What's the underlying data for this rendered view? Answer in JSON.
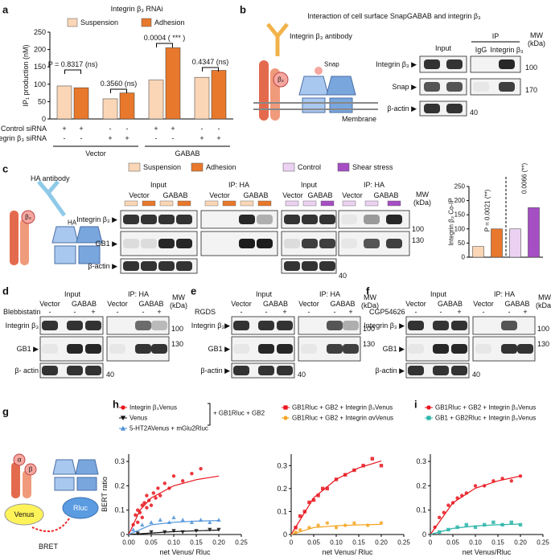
{
  "panel_letters": [
    "a",
    "b",
    "c",
    "d",
    "e",
    "f",
    "g",
    "h",
    "i"
  ],
  "chart_data": [
    {
      "type": "bar",
      "title": "Integrin β₃ RNAi",
      "ylabel": "IP₁ production (nM)",
      "categories": [
        null,
        null,
        null,
        null
      ],
      "series": [
        {
          "name": "Suspension",
          "color": "#fad6b6",
          "values": [
            95,
            58,
            112,
            120
          ]
        },
        {
          "name": "Adhesion",
          "color": "#e8782c",
          "values": [
            90,
            75,
            205,
            140
          ]
        }
      ],
      "ylim": [
        0,
        250
      ],
      "yticks": [
        0,
        50,
        100,
        150,
        200,
        250
      ],
      "annotations": [
        "P = 0.8317 (ns)",
        "0.3560 (ns)",
        "0.0004 ( *** )",
        "0.4347 (ns)"
      ],
      "condition_rows": [
        {
          "label": "Control siRNA",
          "signs": [
            "+",
            "+",
            "-",
            "-",
            "+",
            "+",
            "-",
            "-"
          ]
        },
        {
          "label": "Integrin β₃ siRNA",
          "signs": [
            "-",
            "-",
            "+",
            "+",
            "-",
            "-",
            "+",
            "+"
          ]
        }
      ],
      "groups": [
        "Vector",
        "GABAB"
      ]
    },
    {
      "type": "bar",
      "ylabel": "Integrin β₃ Co-IP",
      "categories": [
        null,
        null,
        null,
        null
      ],
      "values": [
        38,
        100,
        100,
        175
      ],
      "colors": [
        "#fad6b6",
        "#e8782c",
        "#ecd2f2",
        "#a64ec4"
      ],
      "ylim": [
        0,
        250
      ],
      "yticks": [
        0,
        50,
        100,
        150,
        200,
        250
      ],
      "annotations": [
        "P = 0.0021 (**)",
        "0.0066 (**)"
      ]
    },
    {
      "type": "scatter",
      "xlabel": "net Venus/ Rluc",
      "ylabel": "BERT ratio",
      "xlim": [
        0,
        0.25
      ],
      "ylim": [
        0,
        0.33
      ],
      "xticks": [
        {
          "value": 0,
          "label": "0.00"
        },
        0.05,
        {
          "value": 0.1,
          "label": "0.10"
        },
        0.15,
        {
          "value": 0.2,
          "label": "0.20"
        },
        0.25
      ],
      "yticks": [
        0,
        0.1,
        0.2,
        0.3
      ],
      "legend_note": "+ GB1Rluc + GB2",
      "series": [
        {
          "name": "Integrin β₃Venus",
          "color": "#e8141c",
          "marker": "circle",
          "x": [
            0.01,
            0.015,
            0.02,
            0.02,
            0.025,
            0.03,
            0.03,
            0.035,
            0.04,
            0.04,
            0.045,
            0.05,
            0.055,
            0.06,
            0.065,
            0.07,
            0.08,
            0.09,
            0.1,
            0.12,
            0.14,
            0.16
          ],
          "values": [
            0.04,
            0.08,
            0.05,
            0.1,
            0.09,
            0.12,
            0.07,
            0.13,
            0.11,
            0.16,
            0.14,
            0.12,
            0.17,
            0.15,
            0.19,
            0.16,
            0.21,
            0.19,
            0.24,
            0.22,
            0.25,
            0.27
          ],
          "fit": {
            "x": [
              0,
              0.025,
              0.05,
              0.1,
              0.15,
              0.2
            ],
            "values": [
              0,
              0.1,
              0.15,
              0.2,
              0.225,
              0.24
            ]
          }
        },
        {
          "name": "Venus",
          "color": "#111111",
          "marker": "triangle-down",
          "x": [
            0.02,
            0.05,
            0.08,
            0.1,
            0.12,
            0.15,
            0.18,
            0.2
          ],
          "values": [
            0.005,
            0.01,
            0.01,
            0.015,
            0.01,
            0.015,
            0.02,
            0.02
          ],
          "fit": {
            "x": [
              0,
              0.1,
              0.2
            ],
            "values": [
              0,
              0.012,
              0.018
            ]
          }
        },
        {
          "name": "5-HT2AVenus + mGlu2Rluc",
          "color": "#4a90d9",
          "marker": "triangle",
          "x": [
            0.01,
            0.03,
            0.05,
            0.07,
            0.09,
            0.1,
            0.12,
            0.14,
            0.16,
            0.18,
            0.2
          ],
          "values": [
            0.02,
            0.04,
            0.05,
            0.06,
            0.05,
            0.07,
            0.06,
            0.05,
            0.06,
            0.05,
            0.06
          ],
          "fit": {
            "x": [
              0,
              0.05,
              0.1,
              0.15,
              0.2
            ],
            "values": [
              0,
              0.04,
              0.05,
              0.055,
              0.057
            ]
          }
        }
      ]
    },
    {
      "type": "scatter",
      "xlabel": "net Venus/ Rluc",
      "xlim": [
        0,
        0.25
      ],
      "ylim": [
        0,
        0.35
      ],
      "xticks": [
        0,
        0.05,
        {
          "value": 0.1,
          "label": "0.10"
        },
        0.15,
        {
          "value": 0.2,
          "label": "0.20"
        },
        0.25
      ],
      "yticks": [
        0,
        0.1,
        0.2,
        0.3
      ],
      "series": [
        {
          "name": "GB1Rluc + GB2 + Integrin β₃Venus",
          "color": "#e8141c",
          "marker": "square",
          "x": [
            0.01,
            0.02,
            0.03,
            0.04,
            0.05,
            0.06,
            0.07,
            0.08,
            0.1,
            0.12,
            0.14,
            0.16,
            0.18,
            0.2
          ],
          "values": [
            0.03,
            0.08,
            0.1,
            0.14,
            0.15,
            0.17,
            0.2,
            0.2,
            0.24,
            0.26,
            0.28,
            0.3,
            0.33,
            0.3
          ],
          "fit": {
            "x": [
              0,
              0.05,
              0.1,
              0.15,
              0.2
            ],
            "values": [
              0,
              0.16,
              0.24,
              0.29,
              0.32
            ]
          }
        },
        {
          "name": "GB1Rluc + GB2 + Integrin αvVenus",
          "color": "#f5a623",
          "marker": "circle",
          "x": [
            0.01,
            0.02,
            0.04,
            0.06,
            0.08,
            0.1,
            0.12,
            0.14,
            0.17,
            0.2
          ],
          "values": [
            0.01,
            0.02,
            0.03,
            0.04,
            0.05,
            0.03,
            0.04,
            0.05,
            0.04,
            0.05
          ],
          "fit": {
            "x": [
              0,
              0.05,
              0.1,
              0.15,
              0.2
            ],
            "values": [
              0,
              0.03,
              0.038,
              0.042,
              0.044
            ]
          }
        }
      ]
    },
    {
      "type": "scatter",
      "xlabel": "net Venus/Rluc",
      "xlim": [
        0,
        0.25
      ],
      "ylim": [
        0,
        0.33
      ],
      "xticks": [
        0,
        0.05,
        {
          "value": 0.1,
          "label": "0.10"
        },
        0.15,
        {
          "value": 0.2,
          "label": "0.20"
        },
        0.25
      ],
      "yticks": [
        0,
        0.1,
        0.2,
        0.3
      ],
      "series": [
        {
          "name": "GB1Rluc + GB2 + Integrin β₃Venus",
          "color": "#e8141c",
          "marker": "circle",
          "x": [
            0.01,
            0.02,
            0.03,
            0.04,
            0.05,
            0.06,
            0.07,
            0.08,
            0.1,
            0.12,
            0.14,
            0.16,
            0.18,
            0.2
          ],
          "values": [
            0.03,
            0.07,
            0.09,
            0.12,
            0.13,
            0.15,
            0.16,
            0.17,
            0.2,
            0.2,
            0.22,
            0.23,
            0.22,
            0.24
          ],
          "fit": {
            "x": [
              0,
              0.05,
              0.1,
              0.15,
              0.2
            ],
            "values": [
              0,
              0.13,
              0.19,
              0.22,
              0.24
            ]
          }
        },
        {
          "name": "GB1 + GB2Rluc + Integrin β₃Venus",
          "color": "#2bb5a8",
          "marker": "square",
          "x": [
            0.02,
            0.04,
            0.06,
            0.08,
            0.1,
            0.12,
            0.14,
            0.16,
            0.18,
            0.2
          ],
          "values": [
            0.01,
            0.02,
            0.03,
            0.04,
            0.03,
            0.04,
            0.05,
            0.04,
            0.05,
            0.04
          ],
          "fit": {
            "x": [
              0,
              0.05,
              0.1,
              0.15,
              0.2
            ],
            "values": [
              0,
              0.025,
              0.035,
              0.04,
              0.043
            ]
          }
        }
      ]
    }
  ],
  "panel_b": {
    "title": "Interaction of cell surface SnapGABAB and integrin β₃",
    "antibody": "Integrin β₃  antibody",
    "tag": "Snap",
    "subunit": "β₃",
    "membrane": "Membrane",
    "input": "Input",
    "ip": "IP",
    "ip_lanes": [
      "IgG",
      "Integrin β₃"
    ],
    "mw": [
      "MW",
      "(kDa)"
    ],
    "rows": [
      "Integrin β₃ ▶",
      "Snap ▶",
      "β-actin ▶"
    ],
    "mw_values": [
      "100",
      "170",
      "40"
    ]
  },
  "panel_c": {
    "legend": [
      {
        "name": "Suspension",
        "color": "#fad6b6"
      },
      {
        "name": "Adhesion",
        "color": "#e8782c"
      },
      {
        "name": "Control",
        "color": "#ecd2f2"
      },
      {
        "name": "Shear stress",
        "color": "#a64ec4"
      }
    ],
    "antibody": "HA antibody",
    "tag": "HA",
    "subunit": "β₃",
    "headers": [
      "Input",
      "IP: HA",
      "Input",
      "IP: HA"
    ],
    "vector": "Vector",
    "gabab": "GABAB",
    "mw": [
      "MW",
      "(kDa)"
    ],
    "rows": [
      "Integrin β₃ ▶",
      "GB1 ▶",
      "β-actin ▶"
    ],
    "mw_values": [
      "100",
      "130",
      "40"
    ]
  },
  "panel_d": {
    "input": "Input",
    "ip": "IP: HA",
    "vector": "Vector",
    "gabab": "GABAB",
    "treatment": "Blebbistatin",
    "signs": [
      "-",
      "-",
      "+"
    ],
    "mw": [
      "MW",
      "(kDa)"
    ],
    "rows": [
      "Integrin β₃",
      "GB1 ▶",
      "β- actin"
    ],
    "mw_values": [
      "100",
      "130",
      "40"
    ]
  },
  "panel_e": {
    "input": "Input",
    "ip": "IP: HA",
    "vector": "Vector",
    "gabab": "GABAB",
    "treatment": "RGDS",
    "signs": [
      "-",
      "-",
      "+"
    ],
    "mw": [
      "MW",
      "(kDa)"
    ],
    "rows": [
      "Integrin β₃▶",
      "GB1 ▶",
      "β-actin ▶"
    ],
    "mw_values": [
      "100",
      "130",
      "40"
    ]
  },
  "panel_f": {
    "input": "Input",
    "ip": "IP: HA",
    "vector": "Vector",
    "gabab": "GABAB",
    "treatment": "CGP54626",
    "signs": [
      "-",
      "-",
      "+"
    ],
    "mw": [
      "MW",
      "(kDa)"
    ],
    "rows": [
      "Integrin β₃ ▶",
      "GB1 ▶",
      "β-actin ▶"
    ],
    "mw_values": [
      "100",
      "130",
      "40"
    ]
  },
  "panel_g": {
    "subunits": [
      "α",
      "β"
    ],
    "donor": "Venus",
    "acceptor": "Rluc",
    "label": "BRET"
  }
}
